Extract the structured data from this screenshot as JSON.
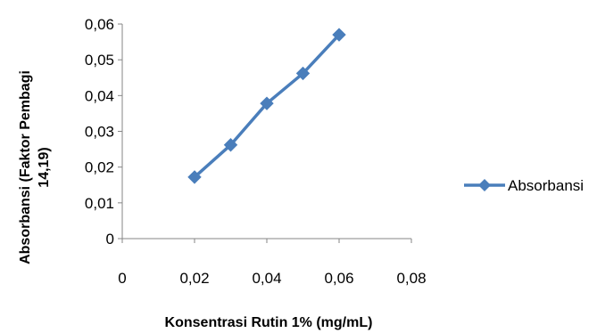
{
  "chart_data": {
    "type": "scatter",
    "title": "",
    "xlabel": "Konsentrasi Rutin 1% (mg/mL)",
    "ylabel_lines": [
      "Absorbansi (Faktor Pembagi",
      "14,19)"
    ],
    "xlim": [
      0,
      0.08
    ],
    "ylim": [
      0,
      0.06
    ],
    "x_ticks": [
      "0",
      "0,02",
      "0,04",
      "0,06",
      "0,08"
    ],
    "y_ticks": [
      "0",
      "0,01",
      "0,02",
      "0,03",
      "0,04",
      "0,05",
      "0,06"
    ],
    "grid": false,
    "legend_position": "right",
    "series": [
      {
        "name": "Absorbansi",
        "color": "#4A7EBB",
        "marker": "diamond",
        "x": [
          0.02,
          0.03,
          0.04,
          0.05,
          0.06
        ],
        "y": [
          0.0172,
          0.0262,
          0.0378,
          0.0462,
          0.057
        ]
      }
    ]
  }
}
